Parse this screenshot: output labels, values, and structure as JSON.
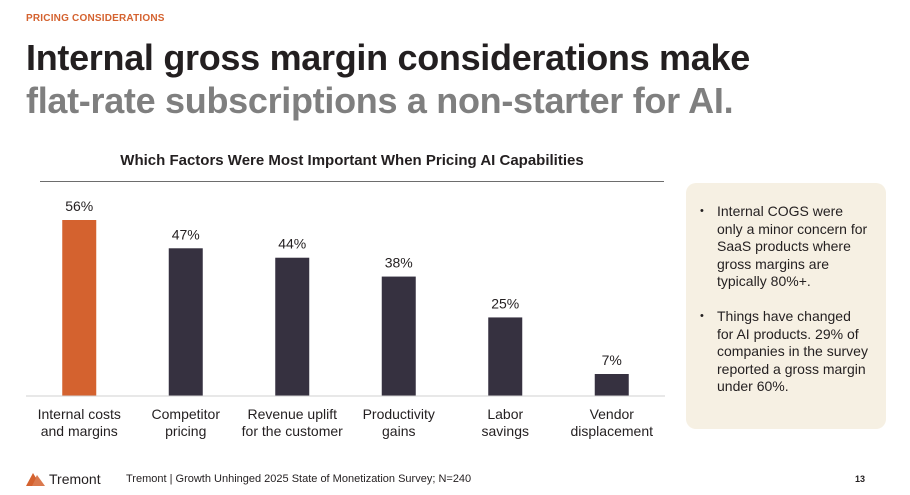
{
  "header": {
    "eyebrow": "PRICING CONSIDERATIONS",
    "title_line1": "Internal gross margin considerations make",
    "title_line2": "flat-rate subscriptions a non-starter for AI."
  },
  "chart_data": {
    "type": "bar",
    "title": "Which Factors Were Most Important When Pricing AI Capabilities",
    "categories": [
      [
        "Internal costs",
        "and margins"
      ],
      [
        "Competitor",
        "pricing"
      ],
      [
        "Revenue uplift",
        "for the customer"
      ],
      [
        "Productivity",
        "gains"
      ],
      [
        "Labor",
        "savings"
      ],
      [
        "Vendor",
        "displacement"
      ]
    ],
    "values": [
      56,
      47,
      44,
      38,
      25,
      7
    ],
    "value_labels": [
      "56%",
      "47%",
      "44%",
      "38%",
      "25%",
      "7%"
    ],
    "highlight_index": 0,
    "ylim": [
      0,
      56
    ],
    "colors": {
      "highlight": "#d4622f",
      "default": "#363140"
    }
  },
  "notes": [
    "Internal COGS were only a minor concern for SaaS products where gross margins are typically 80%+.",
    "Things have changed for AI products. 29% of companies in the survey reported a gross margin under 60%."
  ],
  "footer": {
    "logo_text": "Tremont",
    "source": "Tremont | Growth Unhinged 2025 State of Monetization Survey; N=240",
    "page_number": "13"
  },
  "colors": {
    "accent": "#d4622f",
    "title_dark": "#231f20",
    "title_gray": "#7f7f7f",
    "note_bg": "#f6f0e3"
  }
}
